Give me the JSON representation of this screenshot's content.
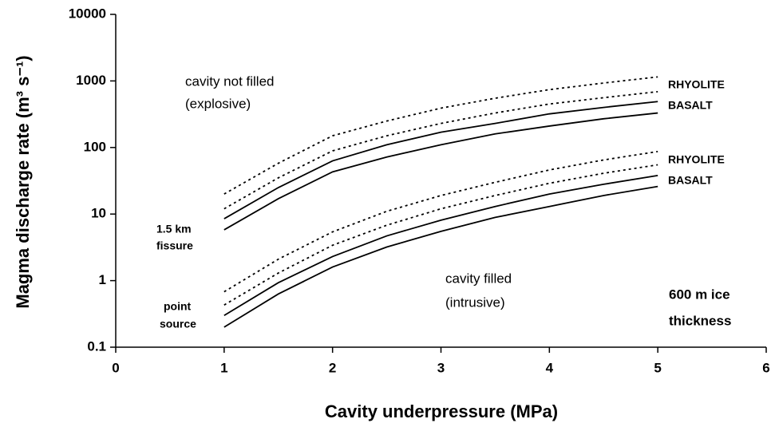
{
  "chart_data": {
    "type": "line",
    "xlabel": "Cavity underpressure (MPa)",
    "ylabel": "Magma discharge rate (m³ s⁻¹)",
    "xlim": [
      0,
      6
    ],
    "xticks": [
      0,
      1,
      2,
      3,
      4,
      5,
      6
    ],
    "ylim": [
      0.1,
      10000
    ],
    "yticks": [
      0.1,
      1,
      10,
      100,
      1000,
      10000
    ],
    "yscale": "log",
    "color": "#000000",
    "x": [
      1,
      1.5,
      2,
      2.5,
      3,
      3.5,
      4,
      4.5,
      5
    ],
    "series": [
      {
        "style": "dotted",
        "values": [
          20,
          58,
          150,
          250,
          390,
          550,
          740,
          930,
          1150
        ]
      },
      {
        "style": "dotted",
        "values": [
          12,
          35,
          89,
          150,
          230,
          330,
          450,
          560,
          690
        ]
      },
      {
        "style": "solid",
        "values": [
          8.5,
          25,
          63,
          110,
          170,
          230,
          320,
          400,
          490
        ]
      },
      {
        "style": "solid",
        "values": [
          5.8,
          17,
          43,
          72,
          110,
          160,
          210,
          270,
          330
        ]
      },
      {
        "style": "dotted",
        "values": [
          0.68,
          2.1,
          5.4,
          11,
          19,
          30,
          46,
          65,
          87
        ]
      },
      {
        "style": "dotted",
        "values": [
          0.43,
          1.3,
          3.4,
          6.8,
          12,
          19,
          29,
          41,
          55
        ]
      },
      {
        "style": "solid",
        "values": [
          0.3,
          0.93,
          2.3,
          4.7,
          8.1,
          13,
          20,
          28,
          38
        ]
      },
      {
        "style": "solid",
        "values": [
          0.2,
          0.63,
          1.6,
          3.2,
          5.5,
          8.9,
          13,
          19,
          26
        ]
      }
    ],
    "annotations": [
      "cavity not filled",
      "(explosive)",
      "RHYOLITE",
      "BASALT",
      "RHYOLITE",
      "BASALT",
      "1.5 km",
      "fissure",
      "point",
      "source",
      "cavity filled",
      "(intrusive)",
      "600 m ice",
      "thickness"
    ]
  }
}
